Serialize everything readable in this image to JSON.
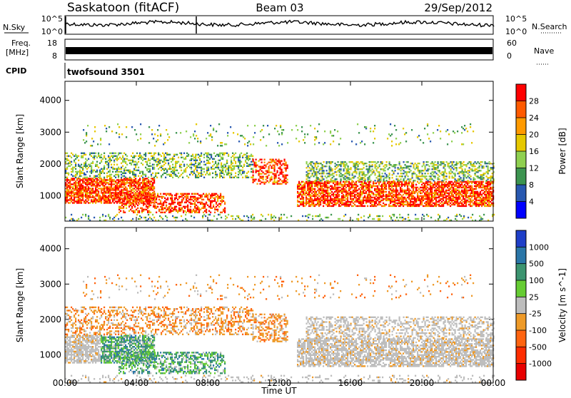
{
  "header": {
    "station": "Saskatoon (fitACF)",
    "beam": "Beam 03",
    "date": "29/Sep/2012"
  },
  "chart_data": [
    {
      "type": "line",
      "panel": "noise",
      "left_label": "N.Sky",
      "left_ticks": [
        "10^5",
        "10^0"
      ],
      "right_label": "N.Search",
      "right_ticks": [
        "10^5",
        "10^0"
      ]
    },
    {
      "type": "line",
      "panel": "frequency",
      "left_label_top": "Freq.",
      "left_label_bottom": "[MHz]",
      "left_ticks": [
        "18",
        "8"
      ],
      "right_label": "Nave",
      "right_ticks": [
        "60",
        "0"
      ],
      "cpid_label": "CPID",
      "cpid_value": "twofsound 3501"
    },
    {
      "type": "heatmap",
      "panel": "power",
      "ylabel": "Slant Range [km]",
      "ylim": [
        200,
        4600
      ],
      "yticks": [
        1000,
        2000,
        3000,
        4000
      ],
      "colorbar_label": "Power [dB]",
      "colorbar_ticks": [
        "28",
        "24",
        "20",
        "16",
        "12",
        "8",
        "4"
      ],
      "colorbar_colors": [
        "#ff0000",
        "#ff5a00",
        "#ff9a00",
        "#e6c800",
        "#8fd050",
        "#3c9450",
        "#2858b0",
        "#0000ff"
      ]
    },
    {
      "type": "heatmap",
      "panel": "velocity",
      "ylabel": "Slant Range [km]",
      "ylim": [
        200,
        4600
      ],
      "yticks": [
        1000,
        2000,
        3000,
        4000
      ],
      "colorbar_label": "Velocity [m s^-1]",
      "colorbar_ticks": [
        "1000",
        "500",
        "100",
        "25",
        "-25",
        "-100",
        "-500",
        "-1000"
      ],
      "colorbar_colors": [
        "#1f3fc8",
        "#2a76a8",
        "#3c9470",
        "#66cc33",
        "#bdbdbd",
        "#ee9a28",
        "#ff6410",
        "#ff2d00",
        "#e80000"
      ]
    }
  ],
  "x_axis": {
    "label": "Time UT",
    "ticks": [
      "00:00",
      "04:00",
      "08:00",
      "12:00",
      "16:00",
      "20:00",
      "00:00"
    ]
  }
}
